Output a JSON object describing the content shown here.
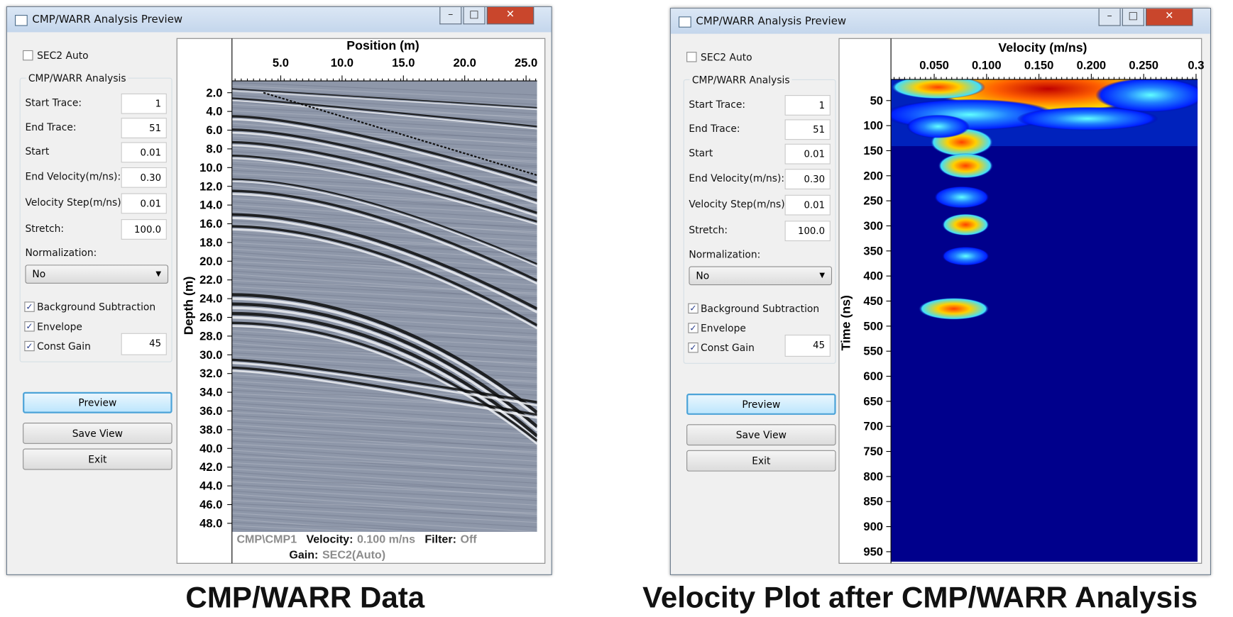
{
  "windows": [
    {
      "title": "CMP/WARR Analysis Preview",
      "controls": {
        "sec2_auto": {
          "label": "SEC2 Auto",
          "checked": false
        },
        "group": "CMP/WARR Analysis",
        "fields": [
          {
            "label": "Start Trace:",
            "value": "1"
          },
          {
            "label": "End Trace:",
            "value": "51"
          },
          {
            "label": "Start",
            "value": "0.01"
          },
          {
            "label": "End Velocity(m/ns):",
            "value": "0.30"
          },
          {
            "label": "Velocity Step(m/ns):",
            "value": "0.01"
          },
          {
            "label": "Stretch:",
            "value": "100.0"
          }
        ],
        "normalization": {
          "label": "Normalization:",
          "value": "No"
        },
        "options": [
          {
            "label": "Background Subtraction",
            "checked": true
          },
          {
            "label": "Envelope",
            "checked": true
          },
          {
            "label": "Const Gain",
            "checked": true,
            "value": "45"
          }
        ],
        "buttons": [
          "Preview",
          "Save View",
          "Exit"
        ]
      },
      "plot": {
        "kind": "radargram",
        "x_label": "Position (m)",
        "x_ticks": [
          "5.0",
          "10.0",
          "15.0",
          "20.0",
          "25.0"
        ],
        "y_label": "Depth (m)",
        "y_ticks": [
          "2.0",
          "4.0",
          "6.0",
          "8.0",
          "10.0",
          "12.0",
          "14.0",
          "16.0",
          "18.0",
          "20.0",
          "22.0",
          "24.0",
          "26.0",
          "28.0",
          "30.0",
          "32.0",
          "34.0",
          "36.0",
          "38.0",
          "40.0",
          "42.0",
          "44.0",
          "46.0",
          "48.0"
        ],
        "status": {
          "source": "CMP\\CMP1",
          "velocity_label": "Velocity:",
          "velocity": "0.100 m/ns",
          "filter_label": "Filter:",
          "filter": "Off",
          "gain_label": "Gain:",
          "gain": "SEC2(Auto)"
        }
      },
      "caption": "CMP/WARR Data"
    },
    {
      "title": "CMP/WARR Analysis Preview",
      "controls": {
        "sec2_auto": {
          "label": "SEC2 Auto",
          "checked": false
        },
        "group": "CMP/WARR Analysis",
        "fields": [
          {
            "label": "Start Trace:",
            "value": "1"
          },
          {
            "label": "End Trace:",
            "value": "51"
          },
          {
            "label": "Start",
            "value": "0.01"
          },
          {
            "label": "End Velocity(m/ns):",
            "value": "0.30"
          },
          {
            "label": "Velocity Step(m/ns):",
            "value": "0.01"
          },
          {
            "label": "Stretch:",
            "value": "100.0"
          }
        ],
        "normalization": {
          "label": "Normalization:",
          "value": "No"
        },
        "options": [
          {
            "label": "Background Subtraction",
            "checked": true
          },
          {
            "label": "Envelope",
            "checked": true
          },
          {
            "label": "Const Gain",
            "checked": true,
            "value": "45"
          }
        ],
        "buttons": [
          "Preview",
          "Save View",
          "Exit"
        ]
      },
      "plot": {
        "kind": "heatmap",
        "x_label": "Velocity (m/ns)",
        "x_ticks": [
          "0.050",
          "0.100",
          "0.150",
          "0.200",
          "0.250",
          "0.3"
        ],
        "y_label": "Time (ns)",
        "y_ticks": [
          "50",
          "100",
          "150",
          "200",
          "250",
          "300",
          "350",
          "400",
          "450",
          "500",
          "550",
          "600",
          "650",
          "700",
          "750",
          "800",
          "850",
          "900",
          "950"
        ]
      },
      "caption": "Velocity Plot after CMP/WARR Analysis"
    }
  ]
}
